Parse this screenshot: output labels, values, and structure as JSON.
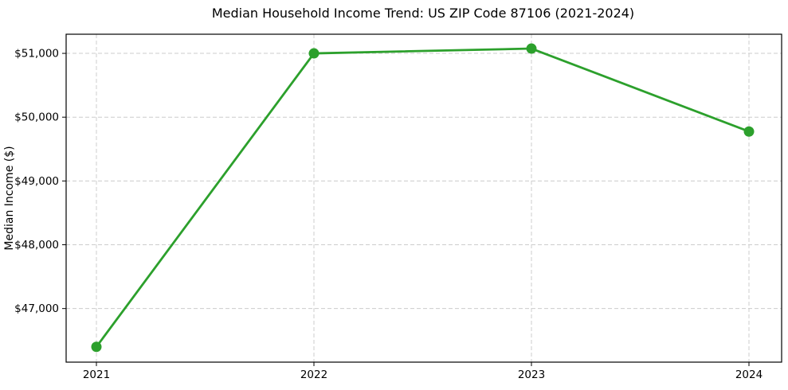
{
  "figure": {
    "background": "#ffffff"
  },
  "chart_data": {
    "type": "line",
    "title": "Median Household Income Trend: US ZIP Code 87106 (2021-2024)",
    "xlabel": "",
    "ylabel": "Median Income ($)",
    "x": [
      "2021",
      "2022",
      "2023",
      "2024"
    ],
    "series": [
      {
        "name": "Median Household Income",
        "values": [
          46400,
          51000,
          51075,
          49775
        ],
        "color": "#2ca02c",
        "marker": "circle"
      }
    ],
    "ylim": [
      46160,
      51300
    ],
    "yticks": {
      "values": [
        47000,
        48000,
        49000,
        50000,
        51000
      ],
      "labels": [
        "$47,000",
        "$48,000",
        "$49,000",
        "$50,000",
        "$51,000"
      ]
    },
    "xticks": {
      "labels": [
        "2021",
        "2022",
        "2023",
        "2024"
      ]
    },
    "grid": {
      "show": true,
      "style": "dashed",
      "color": "#cccccc"
    },
    "legend": {
      "show": false
    },
    "axes": {
      "spine_color": "#000000",
      "text_color": "#000000"
    }
  }
}
